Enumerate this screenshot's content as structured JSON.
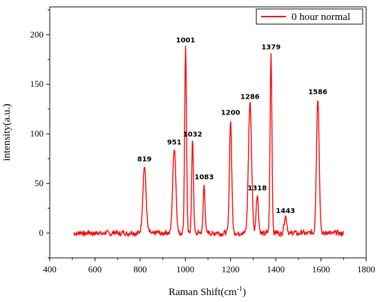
{
  "chart_data": {
    "type": "line",
    "xlabel": "Raman Shift(cm",
    "xlabel_sup": "-1",
    "xlabel_tail": ")",
    "ylabel": "intensity(a.u.)",
    "xlim": [
      400,
      1800
    ],
    "ylim": [
      -25,
      228
    ],
    "x_ticks": [
      400,
      600,
      800,
      1000,
      1200,
      1400,
      1600,
      1800
    ],
    "y_ticks": [
      0,
      50,
      100,
      150,
      200
    ],
    "grid": false,
    "legend_position": "top-right",
    "series": [
      {
        "name": "0 hour normal",
        "color": "#ff0000",
        "x_range": [
          505,
          1700
        ],
        "baseline": 0,
        "peaks": [
          {
            "x": 819,
            "y": 68,
            "width": 7
          },
          {
            "x": 951,
            "y": 85,
            "width": 7
          },
          {
            "x": 1001,
            "y": 188,
            "width": 4
          },
          {
            "x": 1032,
            "y": 93,
            "width": 4
          },
          {
            "x": 1083,
            "y": 50,
            "width": 4
          },
          {
            "x": 1200,
            "y": 115,
            "width": 5
          },
          {
            "x": 1286,
            "y": 131,
            "width": 7
          },
          {
            "x": 1318,
            "y": 39,
            "width": 5
          },
          {
            "x": 1379,
            "y": 181,
            "width": 4
          },
          {
            "x": 1443,
            "y": 16,
            "width": 6
          },
          {
            "x": 1586,
            "y": 136,
            "width": 6
          }
        ]
      }
    ],
    "peak_labels": [
      {
        "text": "819",
        "x": 819,
        "y": 68
      },
      {
        "text": "951",
        "x": 951,
        "y": 85
      },
      {
        "text": "1001",
        "x": 1001,
        "y": 188
      },
      {
        "text": "1032",
        "x": 1032,
        "y": 93
      },
      {
        "text": "1083",
        "x": 1083,
        "y": 50
      },
      {
        "text": "1200",
        "x": 1200,
        "y": 115
      },
      {
        "text": "1286",
        "x": 1286,
        "y": 131
      },
      {
        "text": "1318",
        "x": 1318,
        "y": 39
      },
      {
        "text": "1379",
        "x": 1379,
        "y": 181
      },
      {
        "text": "1443",
        "x": 1443,
        "y": 16
      },
      {
        "text": "1586",
        "x": 1586,
        "y": 136
      }
    ]
  }
}
